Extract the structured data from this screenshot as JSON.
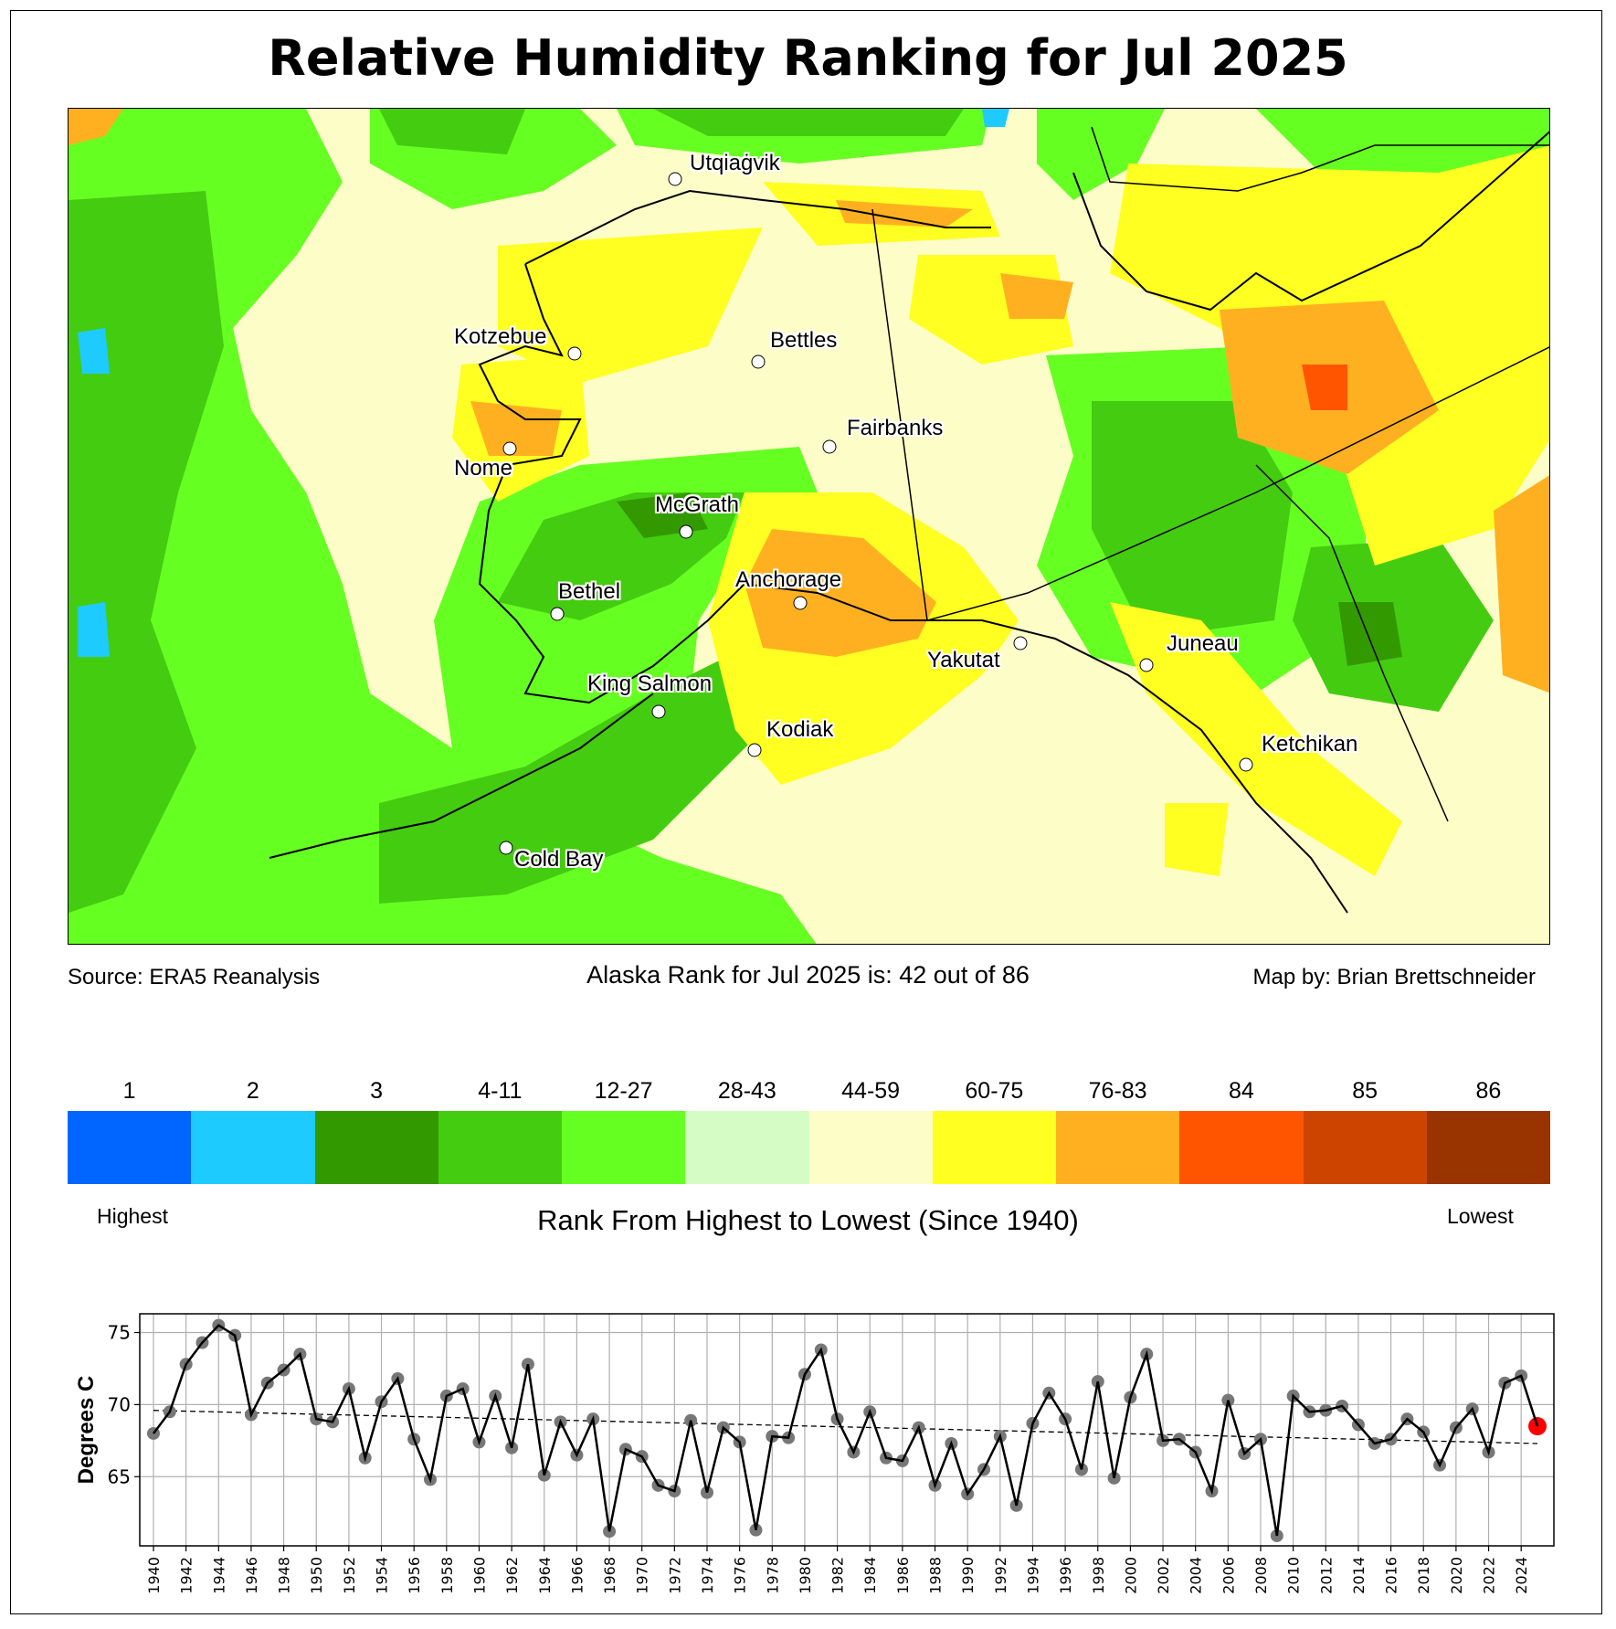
{
  "title": "Relative Humidity Ranking for Jul 2025",
  "source": "Source: ERA5 Reanalysis",
  "alaska_rank": "Alaska Rank for Jul 2025 is: 42 out of 86",
  "credit": "Map by: Brian Brettschneider",
  "cities": [
    "Utqiaġvik",
    "Kotzebue",
    "Bettles",
    "Nome",
    "Fairbanks",
    "McGrath",
    "Bethel",
    "Anchorage",
    "Yakutat",
    "Juneau",
    "King Salmon",
    "Kodiak",
    "Ketchikan",
    "Cold Bay"
  ],
  "legend": {
    "bins": [
      {
        "label": "1",
        "color": "#0066ff"
      },
      {
        "label": "2",
        "color": "#1ecbff"
      },
      {
        "label": "3",
        "color": "#339900"
      },
      {
        "label": "4-11",
        "color": "#44cc11"
      },
      {
        "label": "12-27",
        "color": "#66ff22"
      },
      {
        "label": "28-43",
        "color": "#d5fcc5"
      },
      {
        "label": "44-59",
        "color": "#fdfdc8"
      },
      {
        "label": "60-75",
        "color": "#ffff22"
      },
      {
        "label": "76-83",
        "color": "#ffb020"
      },
      {
        "label": "84",
        "color": "#ff5500"
      },
      {
        "label": "85",
        "color": "#cc4400"
      },
      {
        "label": "86",
        "color": "#993300"
      }
    ],
    "highest": "Highest",
    "lowest": "Lowest",
    "title": "Rank From Highest to Lowest (Since 1940)"
  },
  "chart_data": {
    "type": "line",
    "ylabel": "Degrees C",
    "xlabel": "",
    "ylim": [
      60.2,
      76.3
    ],
    "yticks": [
      65,
      70,
      75
    ],
    "xticks": [
      1940,
      1942,
      1944,
      1946,
      1948,
      1950,
      1952,
      1954,
      1956,
      1958,
      1960,
      1962,
      1964,
      1966,
      1968,
      1970,
      1972,
      1974,
      1976,
      1978,
      1980,
      1982,
      1984,
      1986,
      1988,
      1990,
      1992,
      1994,
      1996,
      1998,
      2000,
      2002,
      2004,
      2006,
      2008,
      2010,
      2012,
      2014,
      2016,
      2018,
      2020,
      2022,
      2024
    ],
    "grid": true,
    "x": [
      1940,
      1941,
      1942,
      1943,
      1944,
      1945,
      1946,
      1947,
      1948,
      1949,
      1950,
      1951,
      1952,
      1953,
      1954,
      1955,
      1956,
      1957,
      1958,
      1959,
      1960,
      1961,
      1962,
      1963,
      1964,
      1965,
      1966,
      1967,
      1968,
      1969,
      1970,
      1971,
      1972,
      1973,
      1974,
      1975,
      1976,
      1977,
      1978,
      1979,
      1980,
      1981,
      1982,
      1983,
      1984,
      1985,
      1986,
      1987,
      1988,
      1989,
      1990,
      1991,
      1992,
      1993,
      1994,
      1995,
      1996,
      1997,
      1998,
      1999,
      2000,
      2001,
      2002,
      2003,
      2004,
      2005,
      2006,
      2007,
      2008,
      2009,
      2010,
      2011,
      2012,
      2013,
      2014,
      2015,
      2016,
      2017,
      2018,
      2019,
      2020,
      2021,
      2022,
      2023,
      2024,
      2025
    ],
    "values": [
      68.0,
      69.5,
      72.8,
      74.3,
      75.5,
      74.8,
      69.3,
      71.5,
      72.4,
      73.5,
      69.0,
      68.8,
      71.1,
      66.3,
      70.2,
      71.8,
      67.6,
      64.8,
      70.6,
      71.1,
      67.4,
      70.6,
      67.0,
      72.8,
      65.1,
      68.8,
      66.5,
      69.0,
      61.2,
      66.9,
      66.4,
      64.4,
      64.0,
      68.9,
      63.9,
      68.4,
      67.4,
      61.3,
      67.8,
      67.7,
      72.1,
      73.8,
      69.0,
      66.7,
      69.5,
      66.3,
      66.1,
      68.4,
      64.4,
      67.3,
      63.8,
      65.5,
      67.8,
      63.0,
      68.7,
      70.8,
      69.0,
      65.5,
      71.6,
      64.9,
      70.5,
      73.5,
      67.5,
      67.6,
      66.7,
      64.0,
      70.3,
      66.6,
      67.6,
      60.9,
      70.6,
      69.5,
      69.6,
      69.9,
      68.6,
      67.3,
      67.6,
      69.0,
      68.1,
      65.8,
      68.4,
      69.7,
      66.7,
      71.5,
      72.0,
      68.5
    ],
    "trend": {
      "start": [
        1940,
        69.6
      ],
      "end": [
        2025,
        67.3
      ]
    },
    "highlight": {
      "year": 2025,
      "color": "#ff0000"
    },
    "point_color": "#777777"
  }
}
